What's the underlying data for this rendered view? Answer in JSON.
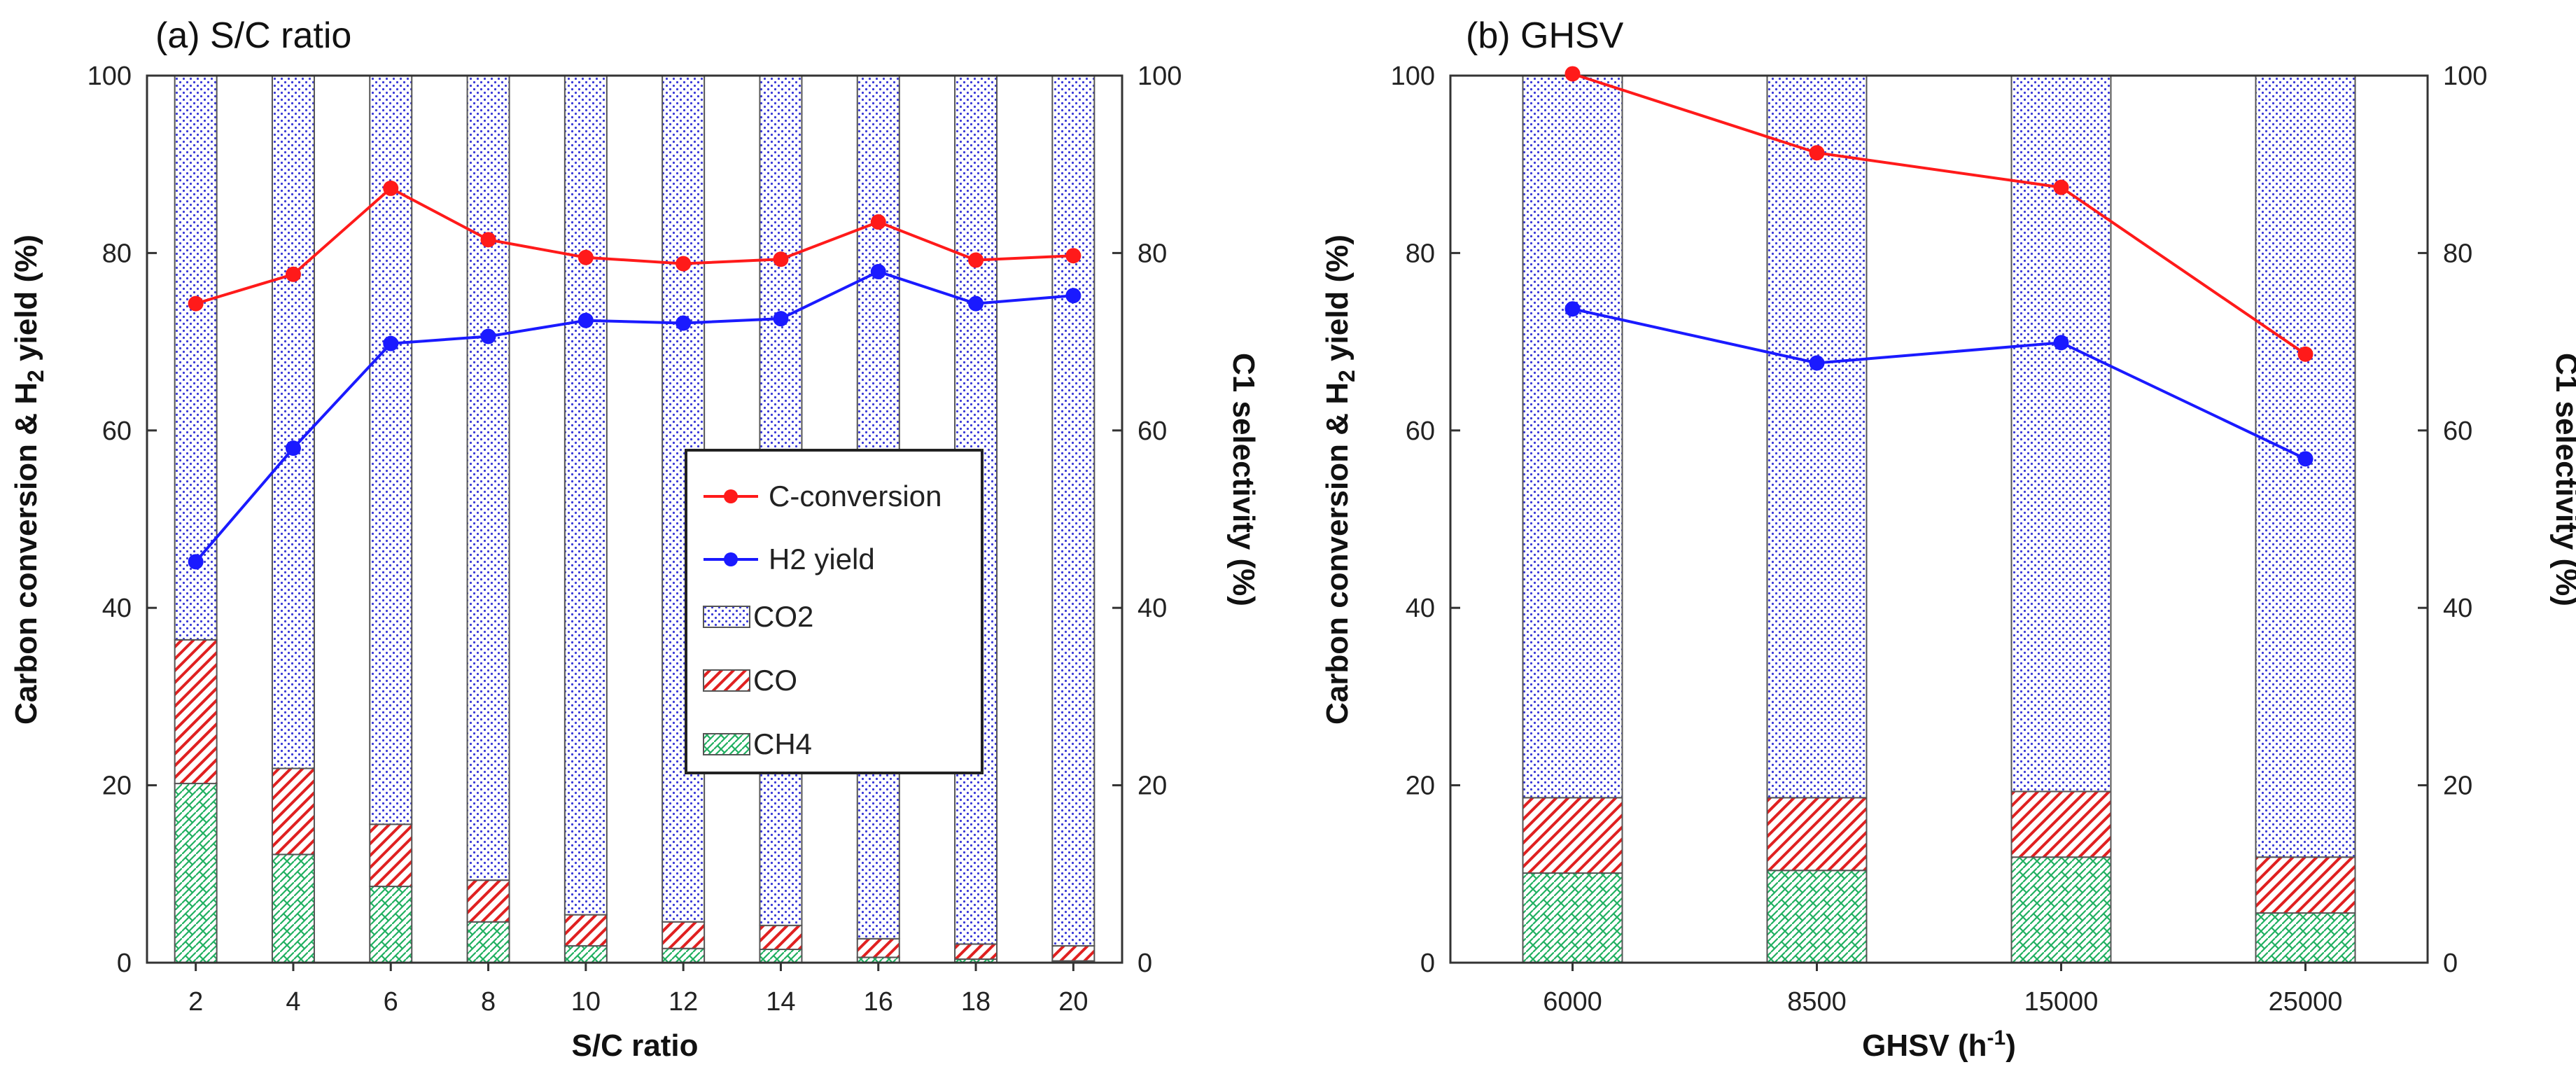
{
  "chart_data": [
    {
      "type": "bar",
      "panel_title": "(a) S/C ratio",
      "xlabel": "S/C ratio",
      "ylabel_left": {
        "main": "Carbon conversion & H",
        "sub": "2",
        "tail": " yield (%)"
      },
      "ylabel_right": "C1 selectivity (%)",
      "ylim": [
        0,
        100
      ],
      "y_ticks": [
        "0",
        "20",
        "40",
        "60",
        "80",
        "100"
      ],
      "categories": [
        "2",
        "4",
        "6",
        "8",
        "10",
        "12",
        "14",
        "16",
        "18",
        "20"
      ],
      "bars": {
        "stacked": true,
        "series": [
          {
            "name": "CH4",
            "values": [
              20.2,
              12.2,
              8.6,
              4.6,
              1.9,
              1.6,
              1.5,
              0.6,
              0.4,
              0.2
            ]
          },
          {
            "name": "CO",
            "values": [
              16.2,
              9.7,
              7.0,
              4.7,
              3.5,
              3.0,
              2.7,
              2.1,
              1.7,
              1.7
            ]
          },
          {
            "name": "CO2",
            "values": [
              63.6,
              78.1,
              84.4,
              90.7,
              94.6,
              95.4,
              95.8,
              97.3,
              97.9,
              98.1
            ]
          }
        ]
      },
      "lines": [
        {
          "name": "C-conversion",
          "values": [
            74.3,
            77.6,
            87.3,
            81.5,
            79.5,
            78.8,
            79.3,
            83.5,
            79.2,
            79.7
          ]
        },
        {
          "name": "H2 yield",
          "values": [
            45.2,
            58.0,
            69.8,
            70.6,
            72.4,
            72.1,
            72.6,
            77.9,
            74.3,
            75.2
          ]
        }
      ],
      "legend": {
        "placement": "center-right",
        "entries": [
          "C-conversion",
          "H2 yield",
          "CO2",
          "CO",
          "CH4"
        ]
      }
    },
    {
      "type": "bar",
      "panel_title": "(b) GHSV",
      "xlabel": {
        "main": "GHSV (h",
        "sup": "-1",
        "tail": ")"
      },
      "ylabel_left": {
        "main": "Carbon conversion & H",
        "sub": "2",
        "tail": " yield (%)"
      },
      "ylabel_right": "C1 selectivity (%)",
      "ylim": [
        0,
        100
      ],
      "y_ticks": [
        "0",
        "20",
        "40",
        "60",
        "80",
        "100"
      ],
      "categories": [
        "6000",
        "8500",
        "15000",
        "25000"
      ],
      "bars": {
        "stacked": true,
        "series": [
          {
            "name": "CH4",
            "values": [
              10.1,
              10.4,
              11.9,
              5.6
            ]
          },
          {
            "name": "CO",
            "values": [
              8.5,
              8.2,
              7.4,
              6.3
            ]
          },
          {
            "name": "CO2",
            "values": [
              81.4,
              81.4,
              80.7,
              88.1
            ]
          }
        ]
      },
      "lines": [
        {
          "name": "C-conversion",
          "values": [
            100.2,
            91.3,
            87.4,
            68.6
          ]
        },
        {
          "name": "H2 yield",
          "values": [
            73.7,
            67.6,
            69.9,
            56.8
          ]
        }
      ]
    }
  ],
  "colors": {
    "c_conversion": "#ff1a1a",
    "h2_yield": "#1a1aff",
    "co2_fill": "#2b2bd8",
    "co_fill": "#e02020",
    "ch4_fill": "#20b060",
    "bar_edge": "#555555",
    "axis": "#333333"
  }
}
